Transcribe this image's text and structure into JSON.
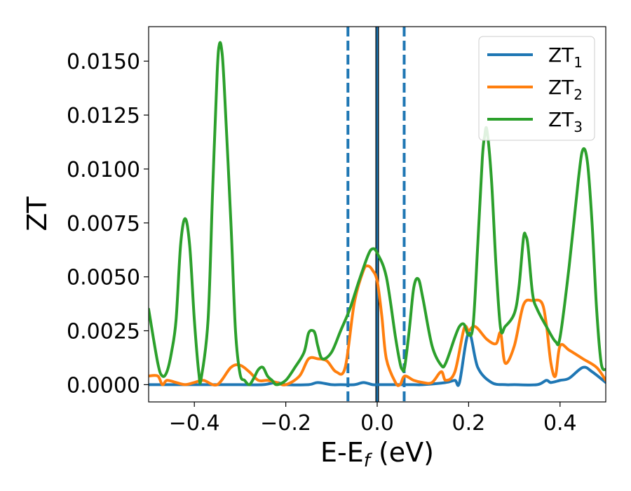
{
  "chart_data": {
    "type": "line",
    "title": "",
    "xlabel_main": "E-E",
    "xlabel_sub": "f",
    "xlabel_unit": " (eV)",
    "ylabel": "ZT",
    "xlim": [
      -0.5,
      0.5
    ],
    "ylim": [
      -0.0008,
      0.0166
    ],
    "xticks": [
      -0.4,
      -0.2,
      0.0,
      0.2,
      0.4
    ],
    "xtick_labels": [
      "−0.4",
      "−0.2",
      "0.0",
      "0.2",
      "0.4"
    ],
    "yticks": [
      0.0,
      0.0025,
      0.005,
      0.0075,
      0.01,
      0.0125,
      0.015
    ],
    "ytick_labels": [
      "0.0000",
      "0.0025",
      "0.0050",
      "0.0075",
      "0.0100",
      "0.0125",
      "0.0150"
    ],
    "grid": false,
    "legend_position": "top-right",
    "vlines": [
      {
        "x": -0.064,
        "style": "dashed",
        "color": "#1f77b4"
      },
      {
        "x": 0.0,
        "style": "solid",
        "color": "#000000"
      },
      {
        "x": 0.0,
        "style": "solid",
        "color": "#1f77b4"
      },
      {
        "x": 0.059,
        "style": "dashed",
        "color": "#1f77b4"
      }
    ],
    "series": [
      {
        "name": "ZT",
        "subscript": "1",
        "color": "#1f77b4",
        "x": [
          -0.5,
          -0.45,
          -0.4,
          -0.35,
          -0.3,
          -0.25,
          -0.22,
          -0.2,
          -0.15,
          -0.13,
          -0.1,
          -0.08,
          -0.05,
          -0.03,
          -0.01,
          0.0,
          0.02,
          0.05,
          0.08,
          0.1,
          0.15,
          0.17,
          0.18,
          0.2,
          0.22,
          0.25,
          0.28,
          0.3,
          0.35,
          0.37,
          0.38,
          0.4,
          0.42,
          0.45,
          0.47,
          0.5
        ],
        "y": [
          0.0,
          0.0,
          0.0,
          0.0,
          0.0,
          0.0,
          0.0001,
          0.0,
          0.0,
          0.0001,
          0.0,
          0.0,
          0.0,
          0.0001,
          0.0,
          0.0,
          0.0,
          0.0,
          0.0,
          0.0,
          0.0001,
          0.0002,
          0.0001,
          0.0024,
          0.0008,
          0.0001,
          0.0,
          0.0,
          0.0,
          0.0002,
          0.0001,
          0.0002,
          0.0003,
          0.0008,
          0.0006,
          0.0001
        ]
      },
      {
        "name": "ZT",
        "subscript": "2",
        "color": "#ff7f0e",
        "x": [
          -0.5,
          -0.48,
          -0.47,
          -0.46,
          -0.44,
          -0.42,
          -0.4,
          -0.38,
          -0.35,
          -0.32,
          -0.3,
          -0.28,
          -0.26,
          -0.24,
          -0.22,
          -0.2,
          -0.17,
          -0.15,
          -0.13,
          -0.11,
          -0.09,
          -0.07,
          -0.05,
          -0.03,
          -0.02,
          -0.01,
          0.0,
          0.01,
          0.02,
          0.04,
          0.05,
          0.06,
          0.08,
          0.1,
          0.12,
          0.14,
          0.15,
          0.17,
          0.19,
          0.2,
          0.21,
          0.22,
          0.24,
          0.26,
          0.27,
          0.28,
          0.3,
          0.32,
          0.34,
          0.36,
          0.37,
          0.38,
          0.39,
          0.4,
          0.42,
          0.45,
          0.48,
          0.5
        ],
        "y": [
          0.0004,
          0.0004,
          0.0,
          0.0002,
          0.0001,
          0.0,
          0.0001,
          0.0002,
          0.0,
          0.0008,
          0.0009,
          0.0006,
          0.0002,
          0.0002,
          0.0001,
          0.0,
          0.0004,
          0.0012,
          0.0012,
          0.0011,
          0.0006,
          0.0008,
          0.0038,
          0.0053,
          0.0055,
          0.0053,
          0.0048,
          0.0032,
          0.0012,
          0.0001,
          0.0,
          0.0004,
          0.0002,
          0.0001,
          0.0001,
          0.0006,
          0.0002,
          0.0006,
          0.0026,
          0.0025,
          0.0027,
          0.0026,
          0.0021,
          0.0019,
          0.0024,
          0.001,
          0.0018,
          0.0037,
          0.0039,
          0.0038,
          0.0028,
          0.001,
          0.0004,
          0.0018,
          0.0016,
          0.0012,
          0.0008,
          0.0002
        ]
      },
      {
        "name": "ZT",
        "subscript": "3",
        "color": "#2ca02c",
        "x": [
          -0.5,
          -0.48,
          -0.47,
          -0.46,
          -0.45,
          -0.44,
          -0.43,
          -0.42,
          -0.41,
          -0.4,
          -0.39,
          -0.385,
          -0.37,
          -0.36,
          -0.35,
          -0.345,
          -0.34,
          -0.335,
          -0.32,
          -0.31,
          -0.3,
          -0.29,
          -0.28,
          -0.27,
          -0.26,
          -0.25,
          -0.24,
          -0.23,
          -0.22,
          -0.2,
          -0.18,
          -0.16,
          -0.15,
          -0.14,
          -0.135,
          -0.13,
          -0.12,
          -0.1,
          -0.08,
          -0.06,
          -0.04,
          -0.02,
          -0.01,
          0.0,
          0.02,
          0.04,
          0.05,
          0.055,
          0.06,
          0.07,
          0.08,
          0.09,
          0.1,
          0.12,
          0.14,
          0.15,
          0.17,
          0.18,
          0.19,
          0.2,
          0.21,
          0.22,
          0.23,
          0.235,
          0.24,
          0.25,
          0.26,
          0.27,
          0.28,
          0.3,
          0.31,
          0.32,
          0.325,
          0.33,
          0.34,
          0.35,
          0.37,
          0.39,
          0.4,
          0.42,
          0.44,
          0.45,
          0.46,
          0.47,
          0.48,
          0.49,
          0.5
        ],
        "y": [
          0.0035,
          0.001,
          0.0004,
          0.0006,
          0.0015,
          0.003,
          0.0065,
          0.0077,
          0.0064,
          0.003,
          0.0005,
          0.0003,
          0.003,
          0.009,
          0.0145,
          0.0158,
          0.0155,
          0.014,
          0.0075,
          0.0025,
          0.0005,
          0.0002,
          0.0,
          0.0003,
          0.0007,
          0.0008,
          0.0004,
          0.0002,
          0.0,
          0.0002,
          0.0008,
          0.0015,
          0.0024,
          0.0025,
          0.0023,
          0.0018,
          0.0012,
          0.0015,
          0.0025,
          0.0035,
          0.0048,
          0.006,
          0.0063,
          0.0061,
          0.005,
          0.0022,
          0.001,
          0.0007,
          0.0008,
          0.0025,
          0.0045,
          0.0049,
          0.004,
          0.0018,
          0.0009,
          0.001,
          0.0022,
          0.0027,
          0.0028,
          0.0023,
          0.0028,
          0.0065,
          0.0105,
          0.0115,
          0.0118,
          0.0095,
          0.0055,
          0.0026,
          0.0027,
          0.0033,
          0.0045,
          0.0068,
          0.0069,
          0.0064,
          0.0042,
          0.0035,
          0.0027,
          0.002,
          0.0022,
          0.0055,
          0.0095,
          0.0109,
          0.0103,
          0.0075,
          0.0035,
          0.001,
          0.0007
        ]
      }
    ]
  }
}
